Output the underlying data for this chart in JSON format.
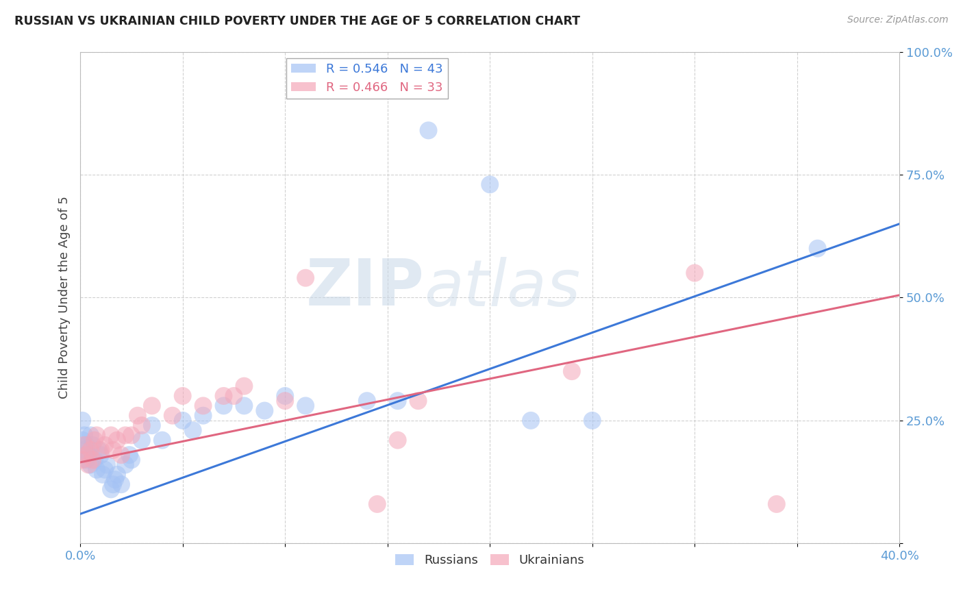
{
  "title": "RUSSIAN VS UKRAINIAN CHILD POVERTY UNDER THE AGE OF 5 CORRELATION CHART",
  "source": "Source: ZipAtlas.com",
  "ylabel": "Child Poverty Under the Age of 5",
  "xlim": [
    0.0,
    0.4
  ],
  "ylim": [
    0.0,
    1.0
  ],
  "xticks": [
    0.0,
    0.05,
    0.1,
    0.15,
    0.2,
    0.25,
    0.3,
    0.35,
    0.4
  ],
  "xtick_labels": [
    "0.0%",
    "",
    "",
    "",
    "",
    "",
    "",
    "",
    "40.0%"
  ],
  "yticks": [
    0.0,
    0.25,
    0.5,
    0.75,
    1.0
  ],
  "ytick_labels": [
    "",
    "25.0%",
    "50.0%",
    "75.0%",
    "100.0%"
  ],
  "russian_color": "#a4c2f4",
  "ukrainian_color": "#f4a7b9",
  "russian_line_color": "#3c78d8",
  "ukrainian_line_color": "#e06680",
  "legend_R_russian": "R = 0.546",
  "legend_N_russian": "N = 43",
  "legend_R_ukrainian": "R = 0.466",
  "legend_N_ukrainian": "N = 33",
  "watermark_zip": "ZIP",
  "watermark_atlas": "atlas",
  "background_color": "#ffffff",
  "grid_color": "#cccccc",
  "russians_x": [
    0.001,
    0.001,
    0.002,
    0.002,
    0.003,
    0.003,
    0.004,
    0.005,
    0.005,
    0.006,
    0.007,
    0.008,
    0.009,
    0.01,
    0.011,
    0.012,
    0.013,
    0.015,
    0.016,
    0.017,
    0.018,
    0.02,
    0.022,
    0.024,
    0.025,
    0.03,
    0.035,
    0.04,
    0.05,
    0.055,
    0.06,
    0.07,
    0.08,
    0.09,
    0.1,
    0.11,
    0.14,
    0.155,
    0.17,
    0.2,
    0.22,
    0.25,
    0.36
  ],
  "russians_y": [
    0.21,
    0.25,
    0.19,
    0.22,
    0.17,
    0.2,
    0.18,
    0.16,
    0.22,
    0.2,
    0.17,
    0.15,
    0.19,
    0.18,
    0.14,
    0.15,
    0.16,
    0.11,
    0.12,
    0.13,
    0.14,
    0.12,
    0.16,
    0.18,
    0.17,
    0.21,
    0.24,
    0.21,
    0.25,
    0.23,
    0.26,
    0.28,
    0.28,
    0.27,
    0.3,
    0.28,
    0.29,
    0.29,
    0.84,
    0.73,
    0.25,
    0.25,
    0.6
  ],
  "ukrainians_x": [
    0.001,
    0.002,
    0.003,
    0.004,
    0.005,
    0.006,
    0.007,
    0.008,
    0.01,
    0.012,
    0.015,
    0.016,
    0.018,
    0.02,
    0.022,
    0.025,
    0.028,
    0.03,
    0.035,
    0.045,
    0.05,
    0.06,
    0.07,
    0.075,
    0.08,
    0.1,
    0.11,
    0.145,
    0.155,
    0.165,
    0.24,
    0.3,
    0.34
  ],
  "ukrainians_y": [
    0.17,
    0.2,
    0.18,
    0.16,
    0.19,
    0.17,
    0.21,
    0.22,
    0.19,
    0.2,
    0.22,
    0.19,
    0.21,
    0.18,
    0.22,
    0.22,
    0.26,
    0.24,
    0.28,
    0.26,
    0.3,
    0.28,
    0.3,
    0.3,
    0.32,
    0.29,
    0.54,
    0.08,
    0.21,
    0.29,
    0.35,
    0.55,
    0.08
  ],
  "blue_line_x0": 0.0,
  "blue_line_y0": 0.06,
  "blue_line_x1": 0.4,
  "blue_line_y1": 0.65,
  "pink_line_x0": 0.0,
  "pink_line_y0": 0.165,
  "pink_line_x1": 0.4,
  "pink_line_y1": 0.505
}
